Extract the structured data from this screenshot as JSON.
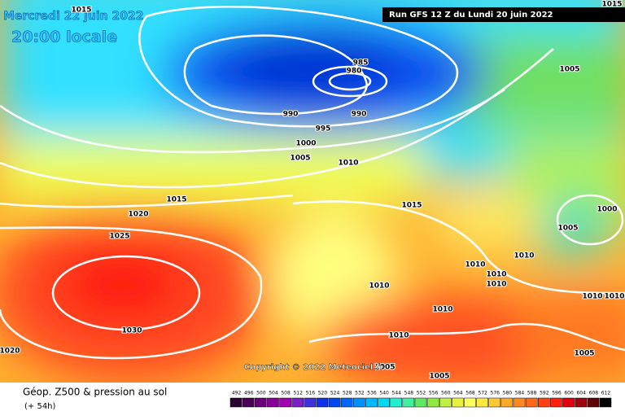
{
  "header": {
    "date": "Mercredi 22 juin 2022",
    "time": "20:00 locale",
    "run": "Run GFS 12 Z du Lundi 20 juin 2022"
  },
  "contour_labels": [
    1015,
    1015,
    985,
    980,
    990,
    990,
    995,
    1000,
    1005,
    1005,
    1010,
    1015,
    1020,
    1025,
    1015,
    1000,
    1005,
    1010,
    1010,
    1010,
    1010,
    1010,
    1010,
    1010,
    1010,
    1030,
    1010,
    1005,
    1020,
    1005,
    1005
  ],
  "copyright": "Copyright © 2022 Meteociel.fr",
  "legend": {
    "title": "Géop. Z500 & pression au sol",
    "subtitle": "(+ 54h)",
    "labels": [
      492,
      496,
      500,
      504,
      508,
      512,
      516,
      520,
      524,
      528,
      532,
      536,
      540,
      544,
      548,
      552,
      556,
      560,
      564,
      568,
      572,
      576,
      580,
      584,
      588,
      592,
      596,
      600,
      604,
      608,
      612
    ],
    "colors": [
      "#2b0033",
      "#4a0059",
      "#6a007a",
      "#8a009a",
      "#a000b0",
      "#7a20c8",
      "#4030d8",
      "#1030e8",
      "#0048f0",
      "#0068f8",
      "#0090ff",
      "#00b8ff",
      "#00d8f0",
      "#20f0d0",
      "#40f0a0",
      "#60e860",
      "#90e840",
      "#c0f040",
      "#e8f040",
      "#ffff60",
      "#ffe840",
      "#ffc830",
      "#ffa828",
      "#ff8820",
      "#ff6818",
      "#ff4010",
      "#ff2010",
      "#e00010",
      "#a00010",
      "#600008",
      "#000000"
    ]
  }
}
